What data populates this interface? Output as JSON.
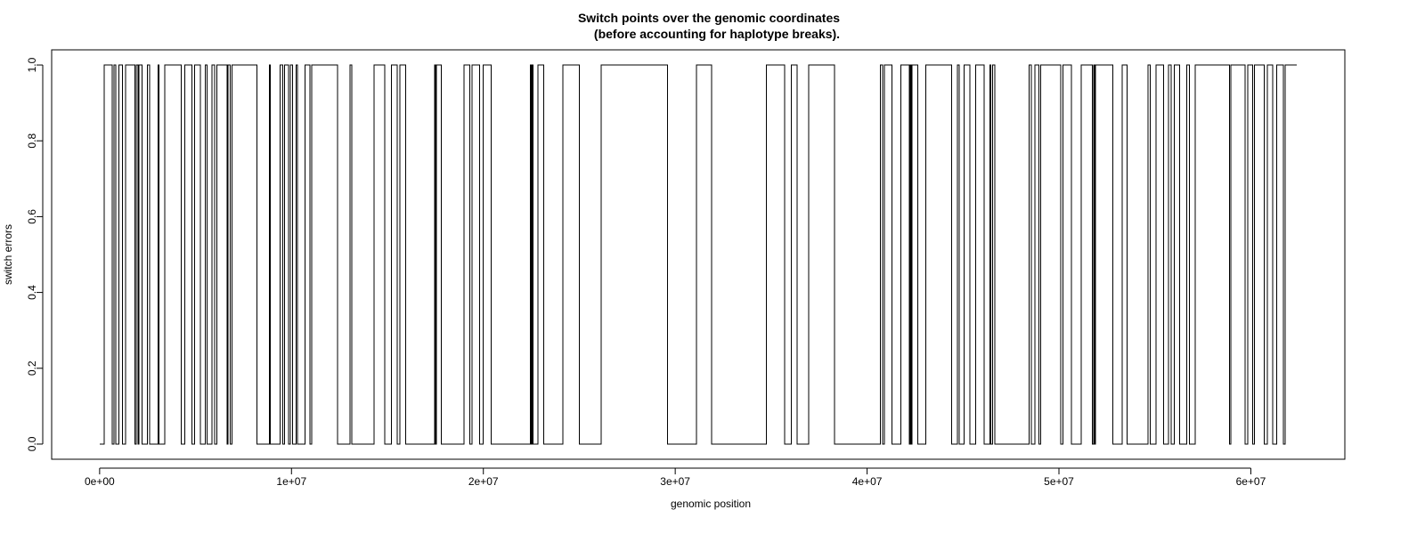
{
  "chart_data": {
    "type": "line",
    "step": true,
    "title_lines": [
      "Switch points over the genomic coordinates",
      "(before accounting for haplotype breaks)."
    ],
    "xlabel": "genomic position",
    "ylabel": "switch errors",
    "xlim": [
      -2500000,
      64900000
    ],
    "ylim": [
      -0.04,
      1.04
    ],
    "x_ticks": [
      0,
      10000000,
      20000000,
      30000000,
      40000000,
      50000000,
      60000000
    ],
    "x_tick_labels": [
      "0e+00",
      "1e+07",
      "2e+07",
      "3e+07",
      "4e+07",
      "5e+07",
      "6e+07"
    ],
    "y_ticks": [
      0,
      0.2,
      0.4,
      0.6,
      0.8,
      1
    ],
    "y_tick_labels": [
      "0.0",
      "0.2",
      "0.4",
      "0.6",
      "0.8",
      "1.0"
    ],
    "line_color": "#000000",
    "grid": false,
    "start_x": 0,
    "end_x": 62400000,
    "start_value": 0,
    "switch_points": [
      250000,
      650000,
      750000,
      850000,
      1000000,
      1200000,
      1350000,
      1850000,
      1900000,
      2000000,
      2050000,
      2200000,
      2500000,
      2600000,
      3050000,
      3100000,
      3400000,
      4250000,
      4450000,
      4800000,
      4950000,
      5250000,
      5500000,
      5600000,
      5850000,
      6000000,
      6100000,
      6650000,
      6700000,
      6800000,
      6900000,
      8200000,
      8850000,
      8900000,
      9400000,
      9550000,
      9650000,
      9850000,
      9950000,
      10050000,
      10250000,
      10300000,
      10700000,
      10950000,
      11050000,
      12400000,
      13050000,
      13150000,
      14300000,
      14850000,
      15200000,
      15500000,
      15650000,
      15950000,
      17450000,
      17500000,
      17550000,
      17800000,
      19000000,
      19300000,
      19400000,
      19800000,
      20000000,
      20400000,
      22450000,
      22500000,
      22550000,
      22600000,
      22850000,
      23150000,
      24150000,
      25000000,
      26150000,
      29600000,
      31100000,
      31900000,
      34750000,
      35700000,
      36050000,
      36350000,
      36950000,
      38300000,
      40700000,
      40800000,
      40900000,
      41300000,
      41750000,
      42200000,
      42250000,
      42300000,
      42350000,
      42650000,
      43050000,
      44400000,
      44700000,
      44800000,
      45050000,
      45350000,
      45650000,
      46100000,
      46400000,
      46450000,
      46550000,
      46650000,
      48450000,
      48550000,
      48750000,
      48950000,
      49050000,
      50100000,
      50200000,
      50650000,
      51150000,
      51750000,
      51800000,
      51850000,
      51900000,
      52800000,
      53300000,
      53550000,
      54650000,
      54750000,
      55050000,
      55450000,
      55700000,
      55850000,
      56000000,
      56300000,
      56650000,
      56800000,
      57100000,
      58900000,
      58950000,
      59700000,
      59850000,
      60100000,
      60200000,
      60700000,
      60850000,
      61150000,
      61350000,
      61700000,
      61800000
    ]
  }
}
